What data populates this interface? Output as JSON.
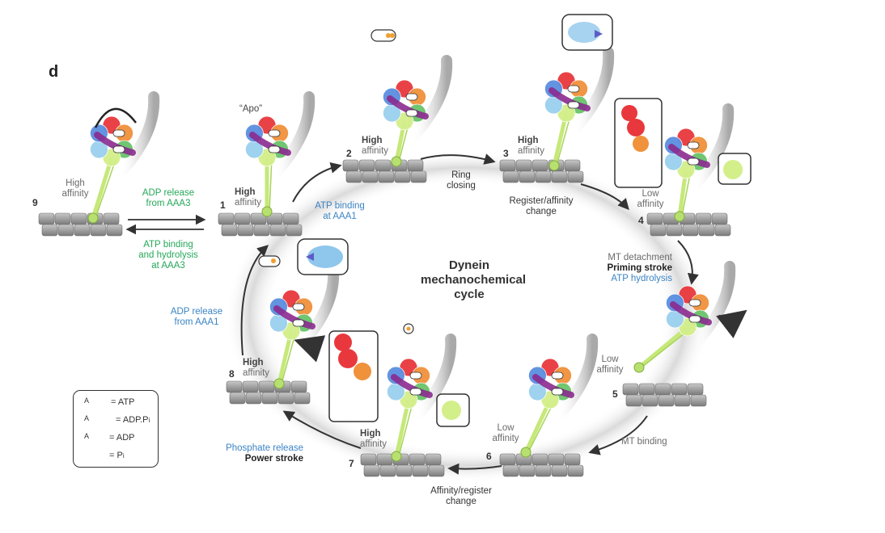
{
  "panel_label": "d",
  "cycle_title": [
    "Dynein",
    "mechanochemical",
    "cycle"
  ],
  "states": [
    {
      "num": "9",
      "strong": "",
      "weak": "High",
      "weak2": "affinity"
    },
    {
      "num": "1",
      "strong": "High",
      "weak": "affinity",
      "note": "“Apo”"
    },
    {
      "num": "2",
      "strong": "High",
      "weak": "affinity"
    },
    {
      "num": "3",
      "strong": "High",
      "weak": "affinity"
    },
    {
      "num": "4",
      "weak": "Low",
      "weak2": "affinity"
    },
    {
      "num": "5",
      "weak": "Low",
      "weak2": "affinity"
    },
    {
      "num": "6",
      "weak": "Low",
      "weak2": "affinity"
    },
    {
      "num": "7",
      "strong": "High",
      "weak": "affinity"
    },
    {
      "num": "8",
      "strong": "High",
      "weak": "affinity"
    }
  ],
  "transitions": {
    "t9_1_top": [
      "ADP release",
      "from AAA3"
    ],
    "t9_1_bottom": [
      "ATP binding",
      "and hydrolysis",
      "at AAA3"
    ],
    "t1_2": [
      "ATP binding",
      "at AAA1"
    ],
    "t2_3": [
      "Ring",
      "closing"
    ],
    "t3_4": [
      "Register/affinity",
      "change"
    ],
    "t4_5_a": "MT detachment",
    "t4_5_b": "Priming stroke",
    "t4_5_c": "ATP hydrolysis",
    "t5_6": "MT binding",
    "t6_7": [
      "Affinity/register",
      "change"
    ],
    "t7_8_a": "Phosphate release",
    "t7_8_b": "Power stroke",
    "t8_1": [
      "ADP release",
      "from AAA1"
    ]
  },
  "legend": [
    {
      "symbol": "A",
      "text": "= ATP"
    },
    {
      "symbol": "A",
      "text": "= ADP.P",
      "sub": "i"
    },
    {
      "symbol": "A",
      "text": "= ADP"
    },
    {
      "symbol": "",
      "text": "= P",
      "sub": "i"
    }
  ],
  "colors": {
    "arrow": "#333333",
    "blue_text": "#3b84c4",
    "green_text": "#26a85a",
    "linker": "#8b2a8f",
    "stalk": "#c6e87a",
    "mt": "#9a9a9a",
    "halo": "#d9d9d9"
  }
}
